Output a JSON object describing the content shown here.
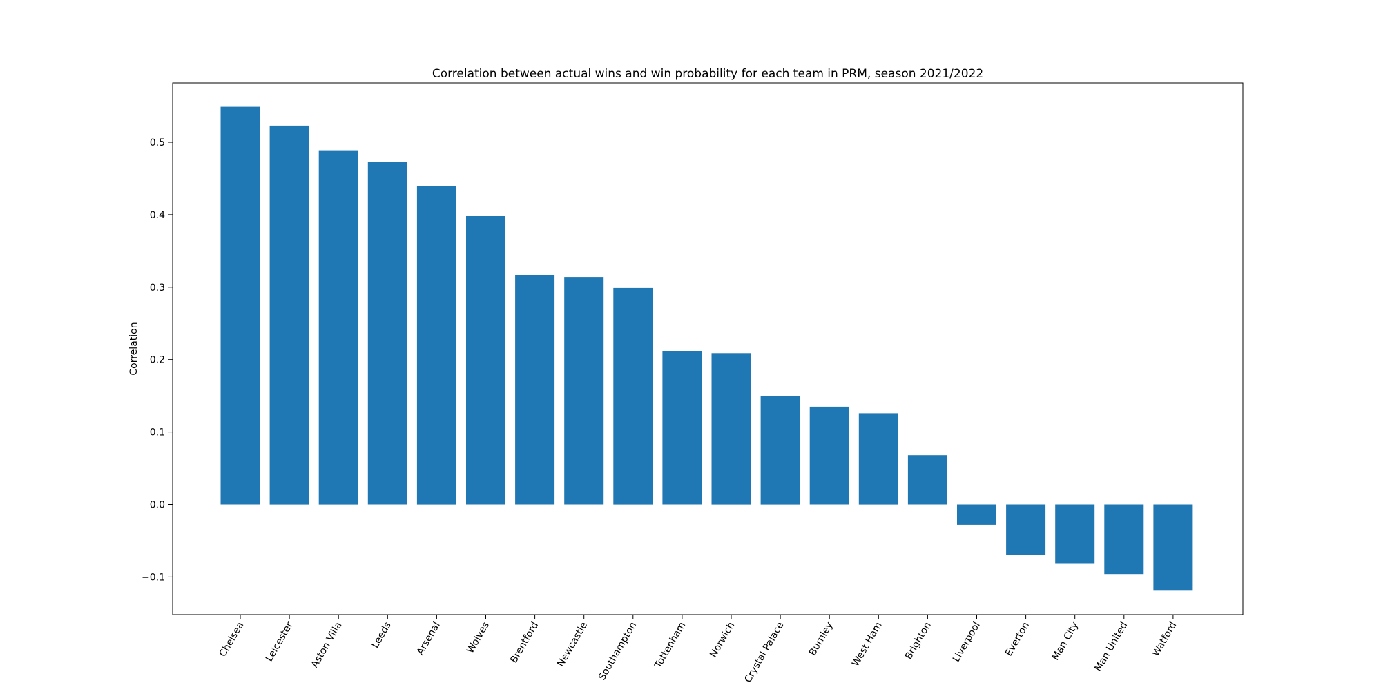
{
  "chart_data": {
    "type": "bar",
    "title": "Correlation between actual wins and win probability for each team in PRM, season 2021/2022",
    "xlabel": "",
    "ylabel": "Correlation",
    "categories": [
      "Chelsea",
      "Leicester",
      "Aston Villa",
      "Leeds",
      "Arsenal",
      "Wolves",
      "Brentford",
      "Newcastle",
      "Southampton",
      "Tottenham",
      "Norwich",
      "Crystal Palace",
      "Burnley",
      "West Ham",
      "Brighton",
      "Liverpool",
      "Everton",
      "Man City",
      "Man United",
      "Watford"
    ],
    "values": [
      0.549,
      0.523,
      0.489,
      0.473,
      0.44,
      0.398,
      0.317,
      0.314,
      0.299,
      0.212,
      0.209,
      0.15,
      0.135,
      0.126,
      0.068,
      -0.028,
      -0.07,
      -0.082,
      -0.096,
      -0.119
    ],
    "ylim": [
      -0.152,
      0.582
    ],
    "yticks": [
      -0.1,
      0.0,
      0.1,
      0.2,
      0.3,
      0.4,
      0.5
    ],
    "ytick_labels": [
      "−0.1",
      "0.0",
      "0.1",
      "0.2",
      "0.3",
      "0.4",
      "0.5"
    ],
    "color": "#1f77b4",
    "grid": false,
    "legend": "none"
  }
}
